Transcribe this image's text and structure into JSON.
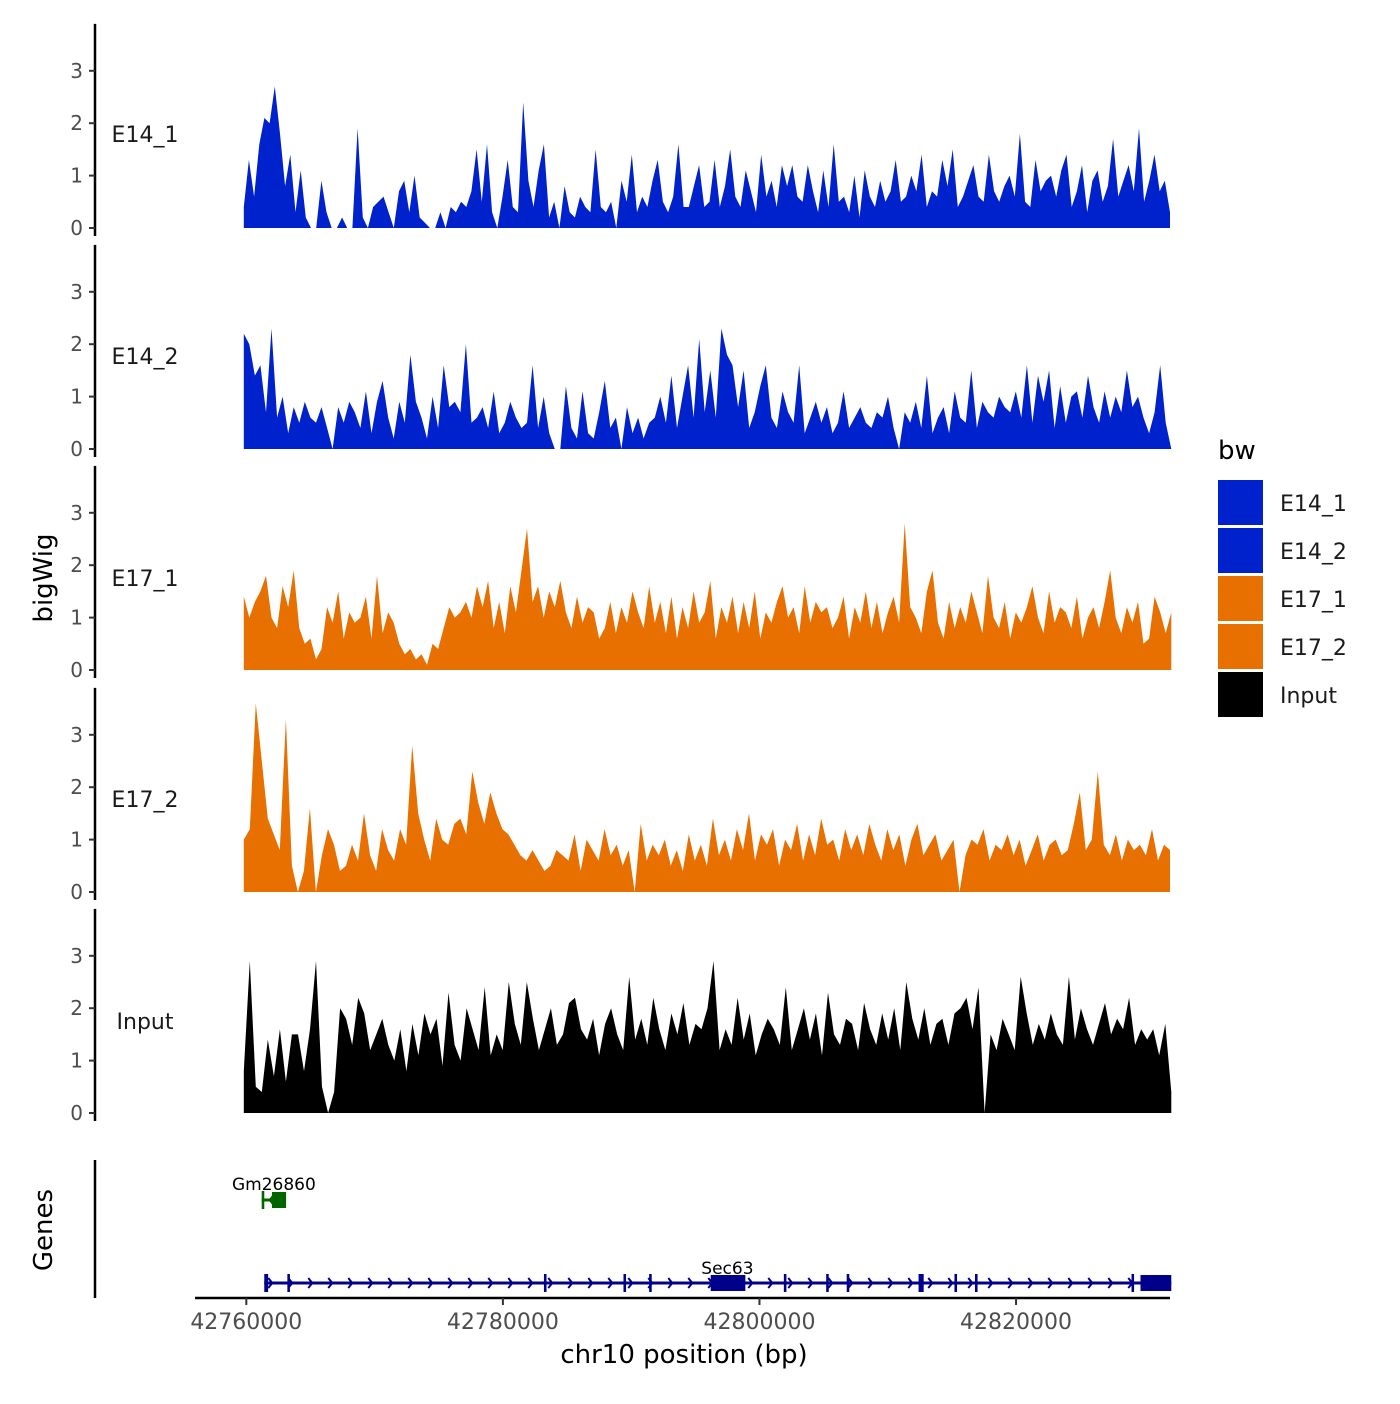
{
  "chart_data": {
    "type": "area",
    "title": "",
    "xlabel": "chr10 position (bp)",
    "ylabel": "bigWig",
    "genes_ylabel": "Genes",
    "xlim": [
      42756000,
      42832000
    ],
    "x_ticks": [
      42760000,
      42780000,
      42800000,
      42820000
    ],
    "x_tick_labels": [
      "42760000",
      "42780000",
      "42800000",
      "42820000"
    ],
    "ylim": [
      0,
      3.8
    ],
    "y_ticks": [
      0,
      1,
      2,
      3
    ],
    "y_tick_labels": [
      "0",
      "1",
      "2",
      "3"
    ],
    "legend": {
      "title": "bw",
      "position": "right",
      "entries": [
        {
          "label": "E14_1",
          "color": "#0022cc"
        },
        {
          "label": "E14_2",
          "color": "#0022cc"
        },
        {
          "label": "E17_1",
          "color": "#e87000"
        },
        {
          "label": "E17_2",
          "color": "#e87000"
        },
        {
          "label": "Input",
          "color": "#000000"
        }
      ]
    },
    "series": [
      {
        "name": "E14_1",
        "color": "#0022cc",
        "x_start": 42759800,
        "x_end": 42832000,
        "values": [
          0.4,
          1.3,
          0.6,
          1.6,
          2.1,
          2.0,
          2.7,
          1.8,
          0.8,
          1.4,
          0.3,
          1.1,
          0.2,
          0.0,
          0.0,
          0.9,
          0.3,
          0.0,
          0.0,
          0.2,
          0.0,
          0.0,
          1.9,
          0.2,
          0.0,
          0.4,
          0.5,
          0.6,
          0.3,
          0.0,
          0.7,
          0.9,
          0.3,
          1.0,
          0.2,
          0.1,
          0.0,
          0.0,
          0.3,
          0.0,
          0.4,
          0.3,
          0.5,
          0.4,
          0.7,
          1.5,
          0.5,
          1.6,
          0.3,
          0.0,
          0.6,
          1.3,
          0.4,
          0.3,
          2.4,
          0.9,
          0.4,
          1.1,
          1.6,
          0.2,
          0.5,
          0.0,
          0.8,
          0.3,
          0.2,
          0.6,
          0.4,
          0.3,
          1.5,
          0.4,
          0.3,
          0.5,
          0.0,
          0.9,
          0.5,
          1.4,
          0.3,
          0.6,
          0.4,
          0.9,
          1.3,
          0.5,
          0.3,
          0.6,
          1.6,
          0.4,
          0.4,
          0.8,
          1.2,
          0.4,
          0.5,
          1.3,
          0.4,
          0.8,
          1.5,
          0.6,
          0.4,
          1.1,
          0.7,
          0.3,
          1.4,
          0.6,
          0.9,
          0.4,
          1.2,
          0.8,
          1.2,
          0.6,
          0.5,
          1.2,
          0.7,
          0.3,
          1.1,
          0.4,
          1.6,
          0.5,
          0.6,
          0.3,
          1.0,
          0.2,
          1.1,
          0.6,
          0.4,
          0.9,
          0.5,
          0.7,
          1.3,
          0.5,
          0.6,
          1.0,
          0.7,
          1.4,
          0.4,
          0.7,
          0.6,
          1.3,
          0.8,
          1.5,
          0.4,
          0.6,
          0.9,
          1.2,
          0.6,
          0.5,
          1.4,
          0.7,
          0.5,
          0.8,
          1.0,
          0.6,
          1.8,
          0.5,
          0.4,
          1.3,
          0.7,
          0.9,
          1.0,
          0.6,
          1.1,
          1.4,
          0.4,
          0.7,
          1.2,
          0.3,
          0.9,
          1.1,
          0.5,
          0.8,
          1.7,
          0.6,
          0.9,
          1.2,
          0.7,
          1.9,
          0.5,
          0.9,
          1.4,
          0.7,
          0.9,
          0.3
        ]
      },
      {
        "name": "E14_2",
        "color": "#0022cc",
        "x_start": 42759800,
        "x_end": 42832100,
        "values": [
          2.2,
          2.0,
          1.4,
          1.6,
          0.7,
          2.3,
          0.6,
          1.0,
          0.3,
          0.8,
          0.5,
          0.9,
          0.6,
          0.5,
          0.8,
          0.4,
          0.0,
          0.8,
          0.5,
          0.9,
          0.7,
          0.4,
          1.1,
          0.3,
          0.9,
          1.3,
          0.6,
          0.2,
          0.9,
          0.5,
          1.8,
          0.9,
          0.6,
          0.2,
          1.0,
          0.4,
          1.6,
          0.8,
          0.9,
          0.7,
          2.0,
          0.5,
          0.6,
          0.8,
          0.4,
          1.1,
          0.3,
          0.5,
          0.9,
          0.6,
          0.4,
          0.5,
          1.6,
          0.4,
          1.0,
          0.3,
          0.0,
          0.0,
          1.2,
          0.4,
          0.2,
          1.1,
          0.3,
          0.2,
          0.7,
          1.3,
          0.4,
          0.6,
          0.0,
          0.8,
          0.3,
          0.6,
          0.2,
          0.5,
          0.6,
          1.0,
          0.5,
          1.4,
          0.4,
          1.0,
          1.6,
          0.6,
          2.1,
          0.7,
          1.5,
          0.6,
          2.3,
          1.8,
          1.6,
          0.8,
          1.5,
          0.4,
          0.7,
          1.2,
          1.6,
          0.6,
          0.4,
          1.1,
          0.7,
          0.5,
          1.6,
          0.3,
          0.6,
          0.9,
          0.5,
          0.8,
          0.3,
          0.5,
          1.1,
          0.4,
          0.6,
          0.8,
          0.5,
          0.4,
          0.7,
          0.6,
          1.0,
          0.4,
          0.0,
          0.7,
          0.5,
          0.9,
          0.4,
          1.4,
          0.3,
          0.6,
          0.8,
          0.3,
          1.1,
          0.6,
          0.5,
          1.5,
          0.4,
          0.9,
          0.7,
          0.6,
          1.0,
          0.8,
          0.7,
          1.1,
          0.6,
          1.6,
          0.5,
          1.4,
          0.9,
          1.5,
          0.4,
          1.2,
          0.5,
          1.0,
          1.1,
          0.6,
          1.4,
          0.8,
          0.5,
          1.1,
          0.6,
          1.0,
          0.7,
          1.5,
          0.8,
          1.0,
          0.6,
          0.3,
          0.7,
          1.6,
          0.5,
          0.0
        ]
      },
      {
        "name": "E17_1",
        "color": "#e87000",
        "x_start": 42759800,
        "x_end": 42832100,
        "values": [
          1.4,
          1.0,
          1.3,
          1.5,
          1.8,
          1.0,
          0.8,
          1.6,
          1.2,
          1.9,
          0.8,
          0.5,
          0.6,
          0.2,
          0.4,
          1.2,
          0.9,
          1.5,
          0.6,
          1.1,
          0.9,
          1.0,
          1.4,
          0.6,
          1.8,
          0.7,
          1.1,
          0.9,
          0.5,
          0.3,
          0.4,
          0.2,
          0.3,
          0.1,
          0.5,
          0.4,
          0.8,
          1.2,
          1.0,
          1.1,
          1.3,
          1.0,
          1.6,
          1.2,
          1.7,
          0.8,
          1.3,
          0.7,
          1.6,
          1.1,
          1.9,
          2.7,
          1.3,
          1.6,
          1.0,
          1.5,
          1.2,
          1.7,
          1.1,
          0.8,
          1.4,
          0.9,
          1.2,
          1.1,
          0.6,
          0.8,
          1.3,
          0.7,
          1.2,
          0.9,
          1.5,
          1.1,
          0.8,
          1.6,
          0.9,
          1.3,
          0.7,
          1.4,
          0.6,
          1.2,
          0.8,
          1.5,
          0.9,
          1.1,
          1.7,
          0.6,
          1.2,
          0.9,
          1.4,
          0.7,
          1.3,
          0.8,
          1.5,
          0.6,
          1.1,
          0.9,
          1.3,
          1.6,
          1.0,
          1.2,
          0.7,
          1.6,
          0.9,
          1.3,
          1.1,
          1.2,
          0.8,
          1.0,
          1.4,
          0.6,
          1.2,
          0.9,
          1.5,
          0.8,
          1.3,
          0.7,
          1.1,
          1.4,
          0.9,
          2.8,
          1.2,
          1.0,
          0.7,
          1.5,
          1.9,
          0.9,
          0.6,
          1.3,
          0.8,
          1.2,
          0.9,
          1.5,
          1.1,
          0.7,
          1.8,
          1.0,
          0.8,
          1.3,
          0.6,
          1.1,
          0.9,
          1.2,
          1.6,
          1.0,
          0.7,
          1.5,
          0.9,
          1.2,
          1.1,
          0.8,
          1.4,
          0.6,
          1.0,
          1.2,
          0.8,
          1.3,
          1.9,
          1.0,
          0.7,
          1.2,
          0.9,
          1.3,
          0.5,
          0.6,
          1.4,
          1.1,
          0.7,
          1.1
        ]
      },
      {
        "name": "E17_2",
        "color": "#e87000",
        "x_start": 42759800,
        "x_end": 42832000,
        "values": [
          1.0,
          1.2,
          3.6,
          2.5,
          1.4,
          1.1,
          0.8,
          3.3,
          0.5,
          0.0,
          0.4,
          1.6,
          0.0,
          0.7,
          1.2,
          0.9,
          0.4,
          0.5,
          0.9,
          0.6,
          1.5,
          0.7,
          0.4,
          1.2,
          0.8,
          0.6,
          1.2,
          0.9,
          2.8,
          1.5,
          1.0,
          0.6,
          1.4,
          1.0,
          0.9,
          1.3,
          1.4,
          1.1,
          2.3,
          1.7,
          1.3,
          1.9,
          1.5,
          1.2,
          1.1,
          0.9,
          0.7,
          0.6,
          0.8,
          0.6,
          0.4,
          0.5,
          0.8,
          0.7,
          0.6,
          1.1,
          0.4,
          1.0,
          0.8,
          0.6,
          1.2,
          0.7,
          0.9,
          0.5,
          0.8,
          0.0,
          1.3,
          0.6,
          0.9,
          0.7,
          1.0,
          0.5,
          0.8,
          0.4,
          1.1,
          0.6,
          0.9,
          0.5,
          1.4,
          0.7,
          1.0,
          0.6,
          1.2,
          0.8,
          1.5,
          0.6,
          1.1,
          0.9,
          1.2,
          0.5,
          1.0,
          0.8,
          1.3,
          0.6,
          1.1,
          0.7,
          1.4,
          0.9,
          1.0,
          0.6,
          1.2,
          0.8,
          1.1,
          0.7,
          1.3,
          0.9,
          0.6,
          1.2,
          0.8,
          1.1,
          0.5,
          1.0,
          1.3,
          0.7,
          0.9,
          1.1,
          0.6,
          0.8,
          1.0,
          0.0,
          0.7,
          1.0,
          0.9,
          1.2,
          0.6,
          0.9,
          0.8,
          1.1,
          0.7,
          1.0,
          0.5,
          0.8,
          1.1,
          0.6,
          0.9,
          1.0,
          0.7,
          0.8,
          1.3,
          1.9,
          0.8,
          1.0,
          2.3,
          0.9,
          0.7,
          1.1,
          0.6,
          1.0,
          0.8,
          0.9,
          0.7,
          1.2,
          0.6,
          0.9,
          0.8
        ]
      },
      {
        "name": "Input",
        "color": "#000000",
        "x_start": 42759800,
        "x_end": 42832100,
        "values": [
          0.8,
          2.9,
          0.5,
          0.4,
          1.4,
          0.7,
          1.6,
          0.6,
          1.5,
          1.5,
          0.8,
          1.6,
          2.9,
          0.5,
          0.0,
          0.4,
          2.0,
          1.8,
          1.3,
          2.2,
          1.9,
          1.2,
          1.5,
          1.8,
          1.3,
          1.0,
          1.6,
          0.8,
          1.7,
          1.1,
          1.9,
          1.5,
          1.8,
          0.9,
          2.3,
          1.3,
          1.0,
          2.0,
          1.6,
          1.2,
          2.4,
          1.1,
          1.5,
          1.2,
          2.5,
          1.7,
          1.3,
          2.5,
          1.8,
          1.2,
          1.6,
          2.0,
          1.3,
          1.5,
          2.1,
          2.2,
          1.6,
          1.4,
          1.8,
          1.1,
          1.7,
          2.0,
          1.5,
          1.2,
          2.6,
          1.4,
          1.8,
          1.3,
          2.2,
          1.6,
          1.2,
          1.9,
          1.5,
          2.1,
          1.3,
          1.7,
          1.6,
          2.0,
          2.9,
          1.2,
          1.6,
          1.3,
          2.2,
          1.4,
          1.9,
          1.1,
          1.5,
          1.8,
          1.6,
          1.3,
          2.4,
          1.2,
          1.6,
          2.0,
          1.4,
          1.9,
          1.1,
          2.3,
          1.5,
          1.3,
          1.8,
          1.7,
          1.2,
          2.1,
          1.6,
          1.3,
          1.9,
          1.4,
          2.0,
          1.2,
          2.5,
          1.8,
          1.4,
          2.0,
          1.3,
          1.7,
          1.8,
          1.3,
          1.9,
          2.0,
          2.2,
          1.6,
          2.4,
          0.0,
          1.5,
          1.2,
          1.8,
          1.5,
          1.2,
          2.6,
          1.9,
          1.3,
          1.7,
          1.4,
          1.9,
          1.5,
          1.3,
          2.6,
          1.4,
          2.0,
          1.6,
          1.3,
          1.7,
          2.1,
          1.5,
          1.8,
          1.6,
          2.2,
          1.3,
          1.6,
          1.4,
          1.6,
          1.1,
          1.7,
          0.4
        ]
      }
    ],
    "genes": [
      {
        "name": "Gm26860",
        "strand": "-",
        "color": "#006400",
        "row": 0,
        "start": 42761200,
        "end": 42763100,
        "exons": [
          [
            42762000,
            42763100
          ],
          [
            42761200,
            42761400
          ]
        ]
      },
      {
        "name": "Sec63",
        "strand": "+",
        "color": "#00008b",
        "row": 1,
        "start": 42761400,
        "end": 42832100,
        "exons": [
          [
            42761400,
            42761700
          ],
          [
            42763200,
            42763400
          ],
          [
            42783200,
            42783400
          ],
          [
            42789400,
            42789600
          ],
          [
            42791400,
            42791600
          ],
          [
            42796200,
            42798900
          ],
          [
            42801900,
            42802100
          ],
          [
            42805200,
            42805400
          ],
          [
            42806800,
            42807000
          ],
          [
            42812400,
            42812800
          ],
          [
            42815200,
            42815400
          ],
          [
            42816800,
            42817000
          ],
          [
            42829000,
            42829200
          ],
          [
            42829700,
            42832100
          ]
        ]
      }
    ],
    "gene_label_sec63_x": 42797500
  }
}
